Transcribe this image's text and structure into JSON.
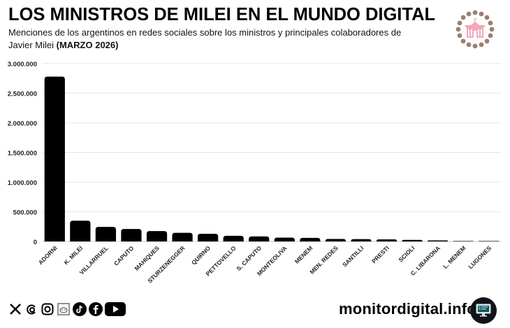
{
  "header": {
    "title": "LOS MINISTROS DE MILEI EN EL MUNDO DIGITAL",
    "subtitle_text": "Menciones de los argentinos en redes sociales sobre los ministros y principales colaboradores de Javier Milei ",
    "subtitle_period": "(MARZO 2026)",
    "logo_icon": "casa-rosada-faces-icon"
  },
  "chart_data": {
    "type": "bar",
    "title": "LOS MINISTROS DE MILEI EN EL MUNDO DIGITAL",
    "xlabel": "",
    "ylabel": "",
    "ylim": [
      0,
      3000000
    ],
    "yticks": [
      0,
      500000,
      1000000,
      1500000,
      2000000,
      2500000,
      3000000
    ],
    "ytick_labels": [
      "0",
      "500.000",
      "1.000.000",
      "1.500.000",
      "2.000.000",
      "2.500.000",
      "3.000.000"
    ],
    "grid": true,
    "legend": "none",
    "bar_color": "#000000",
    "categories": [
      "ADORNI",
      "K. MILEI",
      "VILLARRUEL",
      "CAPUTO",
      "MAHIQUES",
      "STURZENEGGER",
      "QUIRNO",
      "PETTOVELLO",
      "S. CAPUTO",
      "MONTEOLIVA",
      "MENEM",
      "MEN. REDES",
      "SANTILLI",
      "PRESTI",
      "SCIOLI",
      "C. LIBARONA",
      "L. MENEM",
      "LUGONES"
    ],
    "values": [
      2780000,
      350000,
      245000,
      210000,
      175000,
      145000,
      130000,
      95000,
      85000,
      65000,
      60000,
      42000,
      40000,
      35000,
      26000,
      18000,
      4000,
      2000
    ]
  },
  "footer": {
    "social_icons": [
      "x-icon",
      "threads-icon",
      "instagram-icon",
      "reddit-icon",
      "tiktok-icon",
      "facebook-icon",
      "youtube-icon"
    ],
    "brand": "monitordigital.info",
    "brand_icon": "monitor-icon"
  }
}
